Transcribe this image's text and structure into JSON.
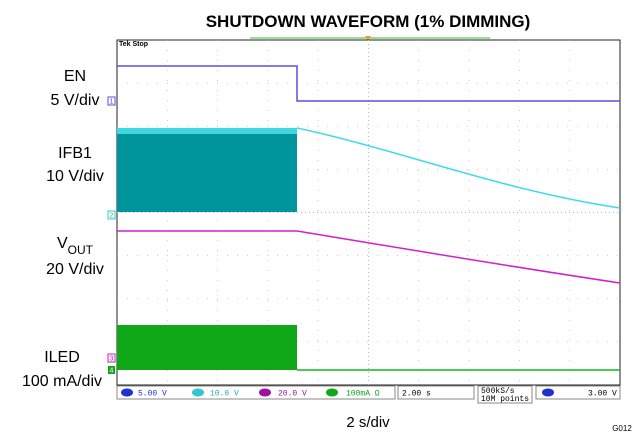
{
  "title": "SHUTDOWN WAVEFORM (1% DIMMING)",
  "scope_status": "Tek Stop",
  "channels": [
    {
      "name": "EN",
      "scale": "5 V/div"
    },
    {
      "name": "IFB1",
      "scale": "10 V/div"
    },
    {
      "name": "V",
      "subscript": "OUT",
      "scale": "20 V/div"
    },
    {
      "name": "ILED",
      "scale": "100 mA/div"
    }
  ],
  "channel_markers": [
    "1",
    "2",
    "3",
    "4"
  ],
  "status_bar": {
    "ch1": "5.00 V",
    "ch2": "10.0 V",
    "ch3": "20.0 V",
    "ch4": "100mA Ω",
    "timebase": "2.00 s",
    "sample_rate": "500kS/s",
    "record_length": "10M points",
    "trigger_level": "3.00 V"
  },
  "x_scale": "2 s/div",
  "figure_id": "G012"
}
